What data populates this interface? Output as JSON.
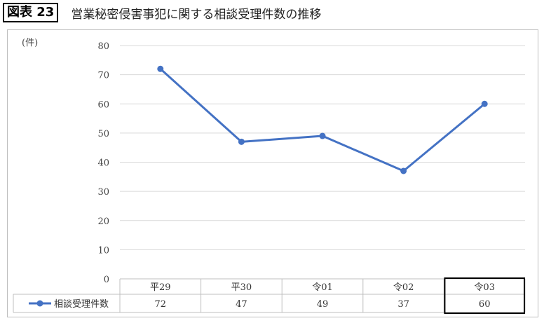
{
  "figure": {
    "label": "図表 23",
    "title": "営業秘密侵害事犯に関する相談受理件数の推移"
  },
  "chart_data": {
    "type": "line",
    "categories": [
      "平29",
      "平30",
      "令01",
      "令02",
      "令03"
    ],
    "series": [
      {
        "name": "相談受理件数",
        "values": [
          72,
          47,
          49,
          37,
          60
        ],
        "color": "#4472C4"
      }
    ],
    "yunit": "(件)",
    "ylim": [
      0,
      80
    ],
    "yticks": [
      0,
      10,
      20,
      30,
      40,
      50,
      60,
      70,
      80
    ],
    "grid": true,
    "data_table": true,
    "highlighted_category": "令03"
  }
}
